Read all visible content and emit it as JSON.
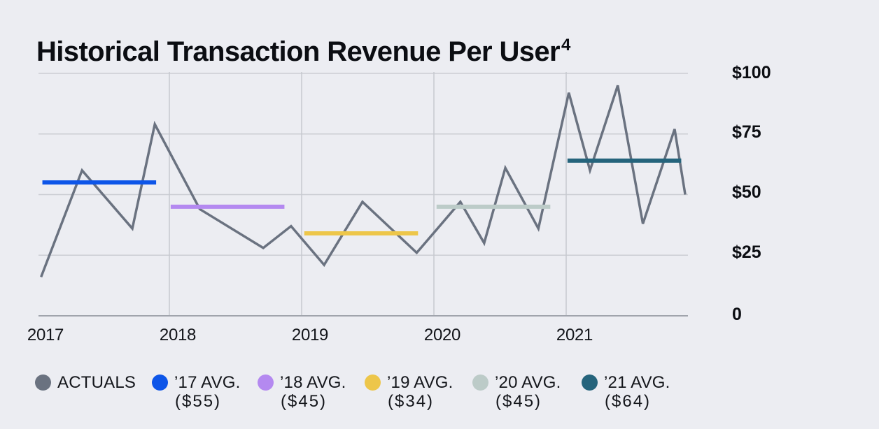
{
  "title": {
    "main": "Historical Transaction Revenue Per User",
    "superscript": "4"
  },
  "colors": {
    "background": "#ECEDF2",
    "grid_horizontal": "#CBCDD3",
    "grid_vertical": "#C6C9CF",
    "axis": "#A0A4AC",
    "actuals_line": "#6A7280",
    "text": "#0C0E13"
  },
  "chart_data": {
    "type": "line",
    "title": "Historical Transaction Revenue Per User⁴",
    "xlabel": "",
    "ylabel": "",
    "x_tick_labels": [
      "2017",
      "2018",
      "2019",
      "2020",
      "2021"
    ],
    "y_tick_labels": [
      "$100",
      "$75",
      "$50",
      "$25",
      "0"
    ],
    "y_tick_values": [
      100,
      75,
      50,
      25,
      0
    ],
    "ylim": [
      0,
      100
    ],
    "xlim": [
      2016.95,
      2021.95
    ],
    "grid": true,
    "legend_position": "bottom",
    "series": [
      {
        "name": "ACTUALS",
        "color": "#6A7280",
        "points": [
          [
            2017.03,
            16
          ],
          [
            2017.34,
            60
          ],
          [
            2017.72,
            36
          ],
          [
            2017.89,
            79
          ],
          [
            2018.23,
            44
          ],
          [
            2018.71,
            28
          ],
          [
            2018.92,
            37
          ],
          [
            2019.17,
            21
          ],
          [
            2019.46,
            47
          ],
          [
            2019.87,
            26
          ],
          [
            2020.2,
            47
          ],
          [
            2020.38,
            30
          ],
          [
            2020.54,
            61
          ],
          [
            2020.79,
            36
          ],
          [
            2021.02,
            92
          ],
          [
            2021.18,
            60
          ],
          [
            2021.39,
            95
          ],
          [
            2021.58,
            38
          ],
          [
            2021.82,
            77
          ],
          [
            2021.9,
            50
          ]
        ]
      }
    ],
    "avg_lines": [
      {
        "name": "’17 AVG.",
        "value": 55,
        "color": "#0D55E8",
        "x_start": 2017.04,
        "x_end": 2017.9
      },
      {
        "name": "’18 AVG.",
        "value": 45,
        "color": "#B489F0",
        "x_start": 2018.01,
        "x_end": 2018.87
      },
      {
        "name": "’19 AVG.",
        "value": 34,
        "color": "#EDC64A",
        "x_start": 2019.02,
        "x_end": 2019.88
      },
      {
        "name": "’20 AVG.",
        "value": 45,
        "color": "#BCCBC8",
        "x_start": 2020.02,
        "x_end": 2020.88
      },
      {
        "name": "’21 AVG.",
        "value": 64,
        "color": "#25647C",
        "x_start": 2021.01,
        "x_end": 2021.87
      }
    ],
    "legend": [
      {
        "label": "ACTUALS",
        "sub": "",
        "color": "#6A7280"
      },
      {
        "label": "’17 AVG.",
        "sub": "($55)",
        "color": "#0D55E8"
      },
      {
        "label": "’18 AVG.",
        "sub": "($45)",
        "color": "#B489F0"
      },
      {
        "label": "’19 AVG.",
        "sub": "($34)",
        "color": "#EDC64A"
      },
      {
        "label": "’20 AVG.",
        "sub": "($45)",
        "color": "#BCCBC8"
      },
      {
        "label": "’21 AVG.",
        "sub": "($64)",
        "color": "#25647C"
      }
    ]
  }
}
